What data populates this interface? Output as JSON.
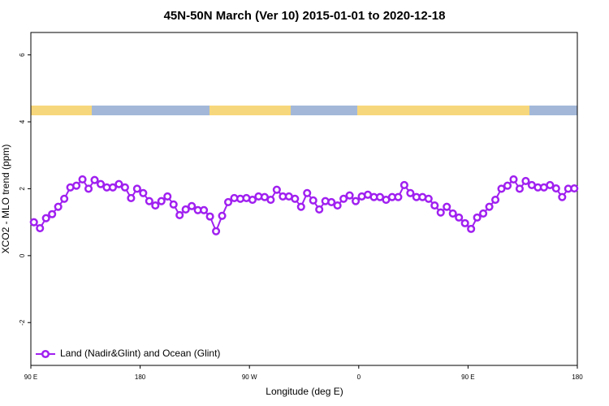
{
  "chart_data": {
    "type": "line",
    "title": "45N-50N March (Ver 10)   2015-01-01 to 2020-12-18",
    "x_label": "Longitude (deg E)",
    "y_label": "XCO2 - MLO trend (ppm)",
    "xlim": [
      90,
      540
    ],
    "ylim": [
      -3.28,
      6.67
    ],
    "xticks": [
      {
        "value": 90,
        "label": "90 E"
      },
      {
        "value": 180,
        "label": "180"
      },
      {
        "value": 270,
        "label": "90 W"
      },
      {
        "value": 360,
        "label": "0"
      },
      {
        "value": 450,
        "label": "90 E"
      },
      {
        "value": 540,
        "label": "180"
      }
    ],
    "yticks": [
      -2,
      0,
      2,
      4,
      6
    ],
    "legend": "bottomleft",
    "x": [
      92.5,
      97.5,
      102.5,
      107.5,
      112.5,
      117.5,
      122.5,
      127.5,
      132.5,
      137.5,
      142.5,
      147.5,
      152.5,
      157.5,
      162.5,
      167.5,
      172.5,
      177.5,
      182.5,
      187.5,
      192.5,
      197.5,
      202.5,
      207.5,
      212.5,
      217.5,
      222.5,
      227.5,
      232.5,
      237.5,
      242.5,
      247.5,
      252.5,
      257.5,
      262.5,
      267.5,
      272.5,
      277.5,
      282.5,
      287.5,
      292.5,
      297.5,
      302.5,
      307.5,
      312.5,
      317.5,
      322.5,
      327.5,
      332.5,
      337.5,
      342.5,
      347.5,
      352.5,
      357.5,
      362.5,
      367.5,
      372.5,
      377.5,
      382.5,
      387.5,
      392.5,
      397.5,
      402.5,
      407.5,
      412.5,
      417.5,
      422.5,
      427.5,
      432.5,
      437.5,
      442.5,
      447.5,
      452.5,
      457.5,
      462.5,
      467.5,
      472.5,
      477.5,
      482.5,
      487.5,
      492.5,
      497.5,
      502.5,
      507.5,
      512.5,
      517.5,
      522.5,
      527.5,
      532.5,
      537.5
    ],
    "series": [
      {
        "name": "Land (Nadir&Glint) and Ocean (Glint)",
        "color": "#a020f0",
        "values": [
          1.0,
          0.82,
          1.12,
          1.24,
          1.46,
          1.7,
          2.04,
          2.09,
          2.28,
          2.0,
          2.26,
          2.14,
          2.04,
          2.04,
          2.14,
          2.04,
          1.72,
          2.0,
          1.87,
          1.63,
          1.5,
          1.63,
          1.77,
          1.53,
          1.21,
          1.38,
          1.48,
          1.36,
          1.36,
          1.17,
          0.73,
          1.19,
          1.6,
          1.72,
          1.7,
          1.72,
          1.67,
          1.77,
          1.75,
          1.67,
          1.97,
          1.77,
          1.77,
          1.7,
          1.46,
          1.87,
          1.65,
          1.38,
          1.63,
          1.6,
          1.5,
          1.7,
          1.8,
          1.63,
          1.77,
          1.82,
          1.75,
          1.75,
          1.67,
          1.75,
          1.75,
          2.11,
          1.87,
          1.75,
          1.75,
          1.7,
          1.5,
          1.29,
          1.46,
          1.26,
          1.14,
          0.97,
          0.8,
          1.14,
          1.26,
          1.46,
          1.67,
          2.0,
          2.09,
          2.28,
          2.0,
          2.23,
          2.11,
          2.04,
          2.04,
          2.11,
          2.01,
          1.75,
          2.0,
          2.01
        ]
      }
    ]
  }
}
